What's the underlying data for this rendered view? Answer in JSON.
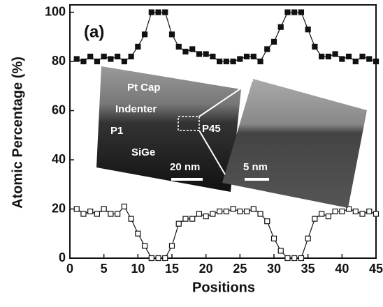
{
  "chart_data": {
    "type": "line",
    "x": [
      1,
      2,
      3,
      4,
      5,
      6,
      7,
      8,
      9,
      10,
      11,
      12,
      13,
      14,
      15,
      16,
      17,
      18,
      19,
      20,
      21,
      22,
      23,
      24,
      25,
      26,
      27,
      28,
      29,
      30,
      31,
      32,
      33,
      34,
      35,
      36,
      37,
      38,
      39,
      40,
      41,
      42,
      43,
      44,
      45
    ],
    "series": [
      {
        "color": "#111111",
        "marker": "filled-square",
        "values": [
          81,
          80,
          82,
          80,
          82,
          81,
          82,
          80,
          82,
          86,
          91,
          100,
          100,
          100,
          91,
          86,
          84,
          85,
          83,
          83,
          82,
          80,
          80,
          80,
          81,
          82,
          82,
          80,
          85,
          88,
          94,
          100,
          100,
          100,
          93,
          86,
          82,
          82,
          83,
          81,
          82,
          80,
          82,
          81,
          80
        ]
      },
      {
        "color": "#111111",
        "marker": "open-square",
        "values": [
          20,
          18,
          19,
          18,
          20,
          18,
          18,
          21,
          16,
          10,
          5,
          0,
          0,
          0,
          5,
          14,
          16,
          16,
          18,
          17,
          18,
          19,
          19,
          20,
          19,
          19,
          20,
          18,
          15,
          8,
          3,
          0,
          0,
          0,
          8,
          16,
          18,
          17,
          19,
          19,
          20,
          19,
          18,
          19,
          18
        ]
      }
    ],
    "xlabel": "Positions",
    "ylabel": "Atomic Percentage (%)",
    "xlim": [
      0,
      45
    ],
    "ylim": [
      0,
      103
    ],
    "xticks": [
      0,
      5,
      10,
      15,
      20,
      25,
      30,
      35,
      40,
      45
    ],
    "yticks": [
      0,
      20,
      40,
      60,
      80,
      100
    ],
    "annotations": {
      "panel": "(a)",
      "cap": "Pt Cap",
      "indenter": "Indenter",
      "p1": "P1",
      "p45": "P45",
      "sige": "SiGe",
      "scale_left": "20 nm",
      "scale_right": "5 nm"
    }
  }
}
